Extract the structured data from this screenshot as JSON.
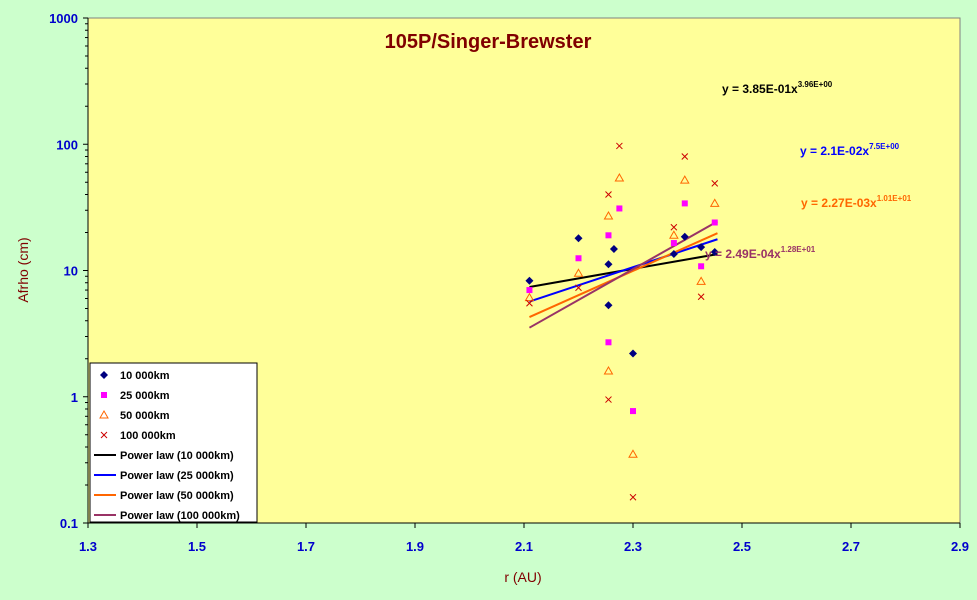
{
  "chart_data": {
    "type": "scatter",
    "title": "105P/Singer-Brewster",
    "xlabel": "r (AU)",
    "ylabel": "Afrho (cm)",
    "xlim": [
      1.3,
      2.9
    ],
    "ylim": [
      0.1,
      1000
    ],
    "yscale": "log",
    "grid": false,
    "legend_position": "bottom-left",
    "x_ticks": [
      "1.3",
      "1.5",
      "1.7",
      "1.9",
      "2.1",
      "2.3",
      "2.5",
      "2.7",
      "2.9"
    ],
    "y_ticks": [
      "0.1",
      "1",
      "10",
      "100",
      "1000"
    ],
    "colors": {
      "background": "#ccffcc",
      "plot_area": "#ffff99",
      "tick_labels": "#0000cc",
      "titles": "#800000"
    },
    "series": [
      {
        "name": "10 000km",
        "marker": "diamond",
        "color": "#000080",
        "x": [
          2.11,
          2.2,
          2.255,
          2.255,
          2.265,
          2.3,
          2.375,
          2.395,
          2.425,
          2.45
        ],
        "y": [
          8.3,
          18,
          11.2,
          5.3,
          14.8,
          2.2,
          13.5,
          18.5,
          15.3,
          14
        ]
      },
      {
        "name": "25 000km",
        "marker": "square",
        "color": "#ff00ff",
        "x": [
          2.11,
          2.2,
          2.255,
          2.255,
          2.275,
          2.3,
          2.375,
          2.395,
          2.425,
          2.45
        ],
        "y": [
          7,
          12.5,
          19,
          2.7,
          31,
          0.77,
          16.5,
          34,
          10.8,
          24
        ]
      },
      {
        "name": "50 000km",
        "marker": "triangle",
        "color": "#ff6600",
        "x": [
          2.11,
          2.2,
          2.255,
          2.255,
          2.275,
          2.3,
          2.375,
          2.395,
          2.425,
          2.45
        ],
        "y": [
          6.1,
          9.5,
          27,
          1.6,
          54,
          0.35,
          19,
          52,
          8.2,
          34
        ]
      },
      {
        "name": "100 000km",
        "marker": "x",
        "color": "#cc0000",
        "x": [
          2.11,
          2.2,
          2.255,
          2.255,
          2.275,
          2.3,
          2.375,
          2.395,
          2.425,
          2.45
        ],
        "y": [
          5.5,
          7.3,
          40,
          0.95,
          97,
          0.16,
          22,
          80,
          6.2,
          49
        ]
      }
    ],
    "trendlines": [
      {
        "name": "Power law (10 000km)",
        "color": "#000000",
        "a": 0.385,
        "b": 3.96,
        "x_range": [
          2.11,
          2.455
        ],
        "equation": "y = 3.85E-01x",
        "exponent": "3.96E+00"
      },
      {
        "name": "Power law (25 000km)",
        "color": "#0000ff",
        "a": 0.021,
        "b": 7.5,
        "x_range": [
          2.11,
          2.455
        ],
        "equation": "y = 2.1E-02x",
        "exponent": "7.5E+00"
      },
      {
        "name": "Power law (50 000km)",
        "color": "#ff6600",
        "a": 0.00227,
        "b": 10.1,
        "x_range": [
          2.11,
          2.455
        ],
        "equation": "y = 2.27E-03x",
        "exponent": "1.01E+01"
      },
      {
        "name": "Power law (100 000km)",
        "color": "#993366",
        "a": 0.000249,
        "b": 12.8,
        "x_range": [
          2.11,
          2.455
        ],
        "equation": "y = 2.49E-04x",
        "exponent": "1.28E+01"
      }
    ]
  }
}
